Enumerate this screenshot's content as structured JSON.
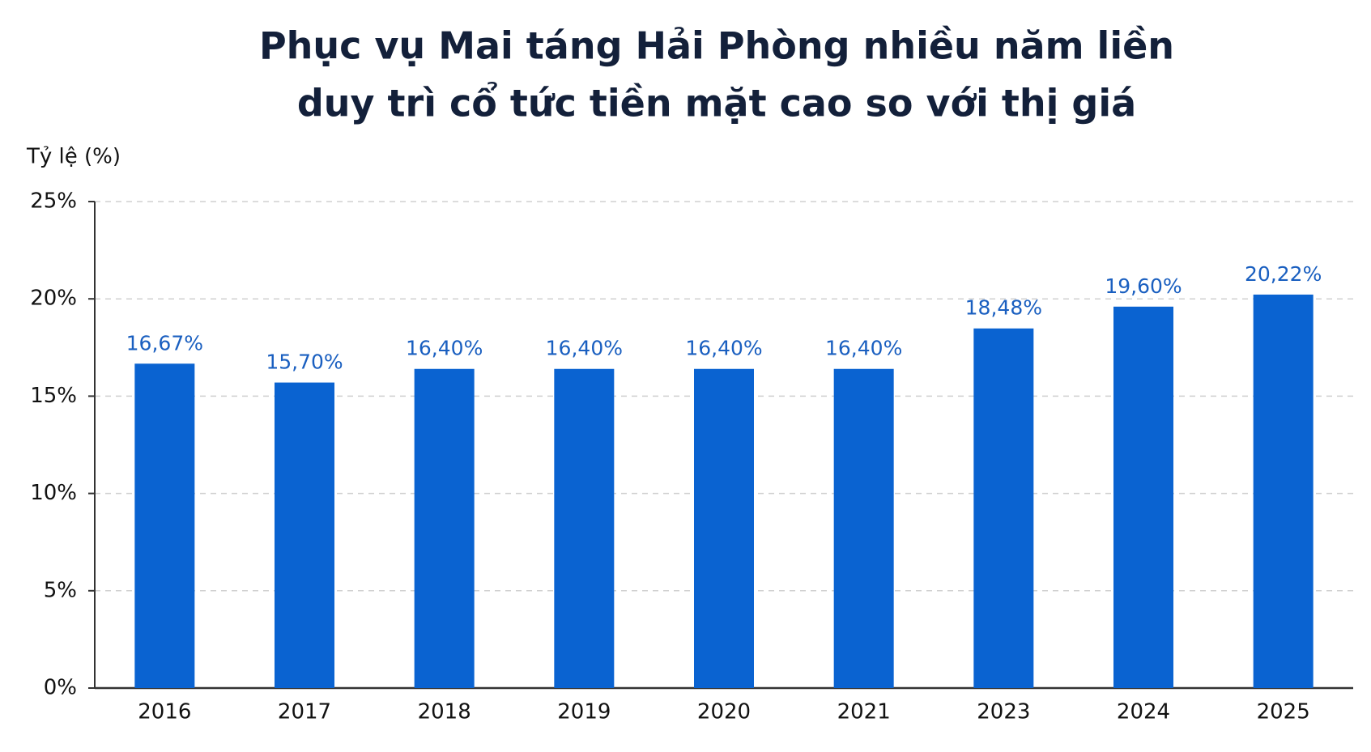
{
  "chart_data": {
    "type": "bar",
    "title": [
      "Phục vụ Mai táng Hải Phòng nhiều năm liền",
      "duy trì cổ tức tiền mặt cao so với thị giá"
    ],
    "y_label": "Tỷ lệ (%)",
    "categories": [
      "2016",
      "2017",
      "2018",
      "2019",
      "2020",
      "2021",
      "2023",
      "2024",
      "2025"
    ],
    "values": [
      16.67,
      15.7,
      16.4,
      16.4,
      16.4,
      16.4,
      18.48,
      19.6,
      20.22
    ],
    "value_labels": [
      "16,67%",
      "15,70%",
      "16,40%",
      "16,40%",
      "16,40%",
      "16,40%",
      "18,48%",
      "19,60%",
      "20,22%"
    ],
    "color": "#0a63d1",
    "ylim": [
      0,
      25
    ],
    "yticks": [
      {
        "value": 0,
        "label": "0%"
      },
      {
        "value": 5,
        "label": "5%"
      },
      {
        "value": 10,
        "label": "10%"
      },
      {
        "value": 15,
        "label": "15%"
      },
      {
        "value": 20,
        "label": "20%"
      },
      {
        "value": 25,
        "label": "25%"
      }
    ],
    "grid": true
  }
}
